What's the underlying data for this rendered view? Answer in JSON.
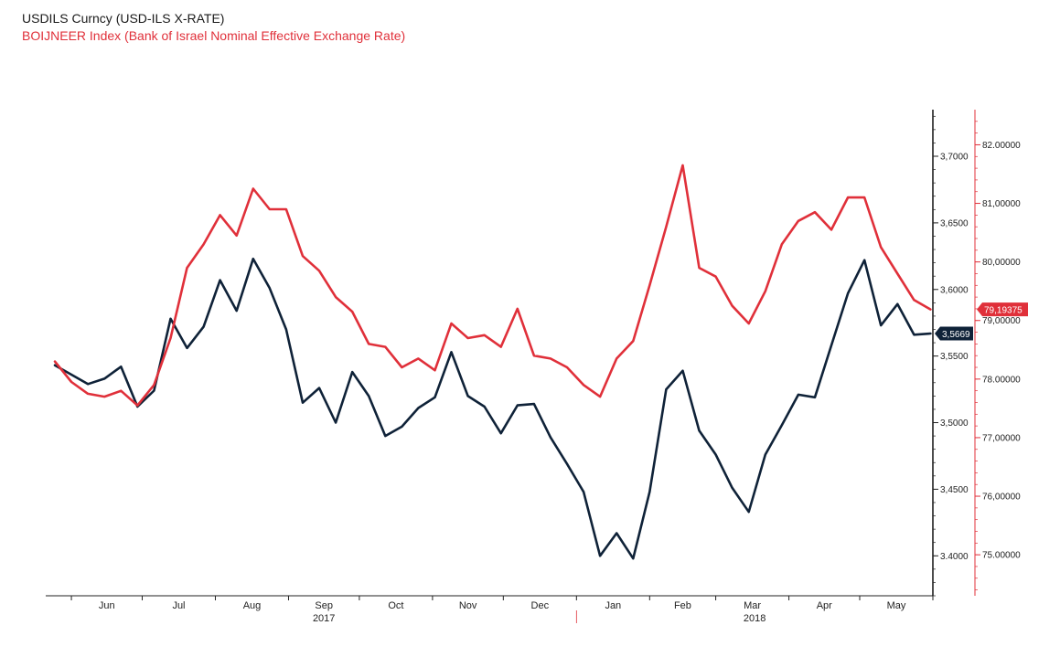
{
  "legend": {
    "series1": "USDILS Curncy (USD-ILS X-RATE)",
    "series2": "BOIJNEER Index (Bank of Israel Nominal Effective Exchange Rate)"
  },
  "chart_data": {
    "type": "line",
    "x_labels": [
      "Jun",
      "Jul",
      "Aug",
      "Sep",
      "Oct",
      "Nov",
      "Dec",
      "Jan",
      "Feb",
      "Mar",
      "Apr",
      "May"
    ],
    "years": [
      "2017",
      "2018"
    ],
    "grid": false,
    "series": [
      {
        "name": "USDILS Curncy (USD-ILS X-RATE)",
        "color": "#0f2238",
        "axis": "left",
        "last_value_label": "3,5669",
        "ylim": [
          3.37,
          3.735
        ],
        "ticks": [
          {
            "v": 3.4,
            "label": "3.4000"
          },
          {
            "v": 3.45,
            "label": "3,4500"
          },
          {
            "v": 3.5,
            "label": "3,5000"
          },
          {
            "v": 3.55,
            "label": "3,5500"
          },
          {
            "v": 3.6,
            "label": "3,6000"
          },
          {
            "v": 3.65,
            "label": "3,6500"
          },
          {
            "v": 3.7,
            "label": "3,7000"
          }
        ],
        "points": [
          [
            "2017-05-25",
            3.543
          ],
          [
            "2017-06-01",
            3.536
          ],
          [
            "2017-06-08",
            3.529
          ],
          [
            "2017-06-15",
            3.533
          ],
          [
            "2017-06-22",
            3.542
          ],
          [
            "2017-06-29",
            3.512
          ],
          [
            "2017-07-06",
            3.524
          ],
          [
            "2017-07-13",
            3.578
          ],
          [
            "2017-07-20",
            3.556
          ],
          [
            "2017-07-27",
            3.572
          ],
          [
            "2017-08-03",
            3.607
          ],
          [
            "2017-08-10",
            3.584
          ],
          [
            "2017-08-17",
            3.623
          ],
          [
            "2017-08-24",
            3.601
          ],
          [
            "2017-08-31",
            3.57
          ],
          [
            "2017-09-07",
            3.515
          ],
          [
            "2017-09-14",
            3.526
          ],
          [
            "2017-09-21",
            3.5
          ],
          [
            "2017-09-28",
            3.538
          ],
          [
            "2017-10-05",
            3.52
          ],
          [
            "2017-10-12",
            3.49
          ],
          [
            "2017-10-19",
            3.497
          ],
          [
            "2017-10-26",
            3.511
          ],
          [
            "2017-11-02",
            3.519
          ],
          [
            "2017-11-09",
            3.553
          ],
          [
            "2017-11-16",
            3.52
          ],
          [
            "2017-11-23",
            3.512
          ],
          [
            "2017-11-30",
            3.492
          ],
          [
            "2017-12-07",
            3.513
          ],
          [
            "2017-12-14",
            3.514
          ],
          [
            "2017-12-21",
            3.489
          ],
          [
            "2017-12-28",
            3.469
          ],
          [
            "2018-01-04",
            3.448
          ],
          [
            "2018-01-11",
            3.4
          ],
          [
            "2018-01-18",
            3.417
          ],
          [
            "2018-01-25",
            3.398
          ],
          [
            "2018-02-01",
            3.448
          ],
          [
            "2018-02-08",
            3.525
          ],
          [
            "2018-02-15",
            3.539
          ],
          [
            "2018-02-22",
            3.494
          ],
          [
            "2018-03-01",
            3.476
          ],
          [
            "2018-03-08",
            3.451
          ],
          [
            "2018-03-15",
            3.433
          ],
          [
            "2018-03-22",
            3.476
          ],
          [
            "2018-03-29",
            3.498
          ],
          [
            "2018-04-05",
            3.521
          ],
          [
            "2018-04-12",
            3.519
          ],
          [
            "2018-04-19",
            3.558
          ],
          [
            "2018-04-26",
            3.597
          ],
          [
            "2018-05-03",
            3.622
          ],
          [
            "2018-05-10",
            3.573
          ],
          [
            "2018-05-17",
            3.589
          ],
          [
            "2018-05-24",
            3.566
          ],
          [
            "2018-05-31",
            3.5669
          ]
        ]
      },
      {
        "name": "BOIJNEER Index (Bank of Israel Nominal Effective Exchange Rate)",
        "color": "#e0303a",
        "axis": "right",
        "last_value_label": "79,19375",
        "ylim": [
          74.3,
          82.6
        ],
        "ticks": [
          {
            "v": 75,
            "label": "75.00000"
          },
          {
            "v": 76,
            "label": "76,00000"
          },
          {
            "v": 77,
            "label": "77,00000"
          },
          {
            "v": 78,
            "label": "78.00000"
          },
          {
            "v": 79,
            "label": "79,00000"
          },
          {
            "v": 80,
            "label": "80,00000"
          },
          {
            "v": 81,
            "label": "81,00000"
          },
          {
            "v": 82,
            "label": "82.00000"
          }
        ],
        "points": [
          [
            "2017-05-25",
            78.3
          ],
          [
            "2017-06-01",
            77.95
          ],
          [
            "2017-06-08",
            77.75
          ],
          [
            "2017-06-15",
            77.7
          ],
          [
            "2017-06-22",
            77.8
          ],
          [
            "2017-06-29",
            77.55
          ],
          [
            "2017-07-06",
            77.9
          ],
          [
            "2017-07-13",
            78.7
          ],
          [
            "2017-07-20",
            79.9
          ],
          [
            "2017-07-27",
            80.3
          ],
          [
            "2017-08-03",
            80.8
          ],
          [
            "2017-08-10",
            80.45
          ],
          [
            "2017-08-17",
            81.25
          ],
          [
            "2017-08-24",
            80.9
          ],
          [
            "2017-08-31",
            80.9
          ],
          [
            "2017-09-07",
            80.1
          ],
          [
            "2017-09-14",
            79.85
          ],
          [
            "2017-09-21",
            79.4
          ],
          [
            "2017-09-28",
            79.15
          ],
          [
            "2017-10-05",
            78.6
          ],
          [
            "2017-10-12",
            78.55
          ],
          [
            "2017-10-19",
            78.2
          ],
          [
            "2017-10-26",
            78.35
          ],
          [
            "2017-11-02",
            78.15
          ],
          [
            "2017-11-09",
            78.95
          ],
          [
            "2017-11-16",
            78.7
          ],
          [
            "2017-11-23",
            78.75
          ],
          [
            "2017-11-30",
            78.55
          ],
          [
            "2017-12-07",
            79.2
          ],
          [
            "2017-12-14",
            78.4
          ],
          [
            "2017-12-21",
            78.35
          ],
          [
            "2017-12-28",
            78.2
          ],
          [
            "2018-01-04",
            77.9
          ],
          [
            "2018-01-11",
            77.7
          ],
          [
            "2018-01-18",
            78.35
          ],
          [
            "2018-01-25",
            78.65
          ],
          [
            "2018-02-01",
            79.6
          ],
          [
            "2018-02-08",
            80.6
          ],
          [
            "2018-02-15",
            81.65
          ],
          [
            "2018-02-22",
            79.9
          ],
          [
            "2018-03-01",
            79.75
          ],
          [
            "2018-03-08",
            79.25
          ],
          [
            "2018-03-15",
            78.95
          ],
          [
            "2018-03-22",
            79.5
          ],
          [
            "2018-03-29",
            80.3
          ],
          [
            "2018-04-05",
            80.7
          ],
          [
            "2018-04-12",
            80.85
          ],
          [
            "2018-04-19",
            80.55
          ],
          [
            "2018-04-26",
            81.1
          ],
          [
            "2018-05-03",
            81.1
          ],
          [
            "2018-05-10",
            80.25
          ],
          [
            "2018-05-17",
            79.8
          ],
          [
            "2018-05-24",
            79.35
          ],
          [
            "2018-05-31",
            79.19
          ]
        ]
      }
    ]
  }
}
